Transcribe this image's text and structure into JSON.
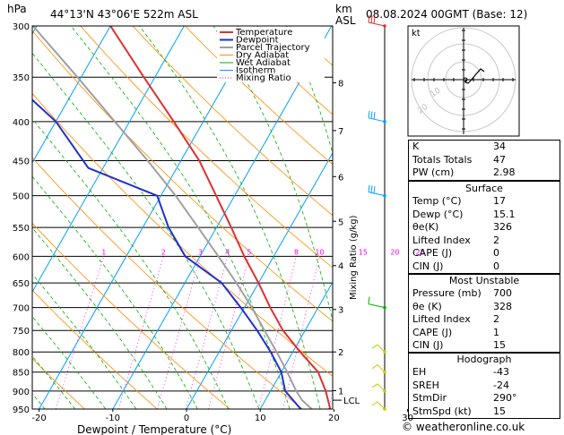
{
  "header": {
    "hpa_unit": "hPa",
    "location": "44°13'N  43°06'E  522m  ASL",
    "km_unit": "km",
    "asl_unit": "ASL",
    "datetime": "08.08.2024  00GMT  (Base: 12)"
  },
  "legend": [
    "Temperature",
    "Dewpoint",
    "Parcel Trajectory",
    "Dry Adiabat",
    "Wet Adiabat",
    "Isotherm",
    "Mixing Ratio"
  ],
  "colors": {
    "temperature": "#e03030",
    "dewpoint": "#2030d0",
    "parcel": "#a0a0a0",
    "dry_adiabat": "#ff8c00",
    "wet_adiabat": "#00b000",
    "isotherm": "#00a0ff",
    "mixing_ratio": "#ff00ff"
  },
  "chart_data": {
    "type": "skew-t",
    "xlabel": "Dewpoint / Temperature (°C)",
    "ylabel": "Mixing Ratio (g/kg)",
    "x_ticks": [
      "-40",
      "-30",
      "-20",
      "-10",
      "0",
      "10",
      "20",
      "30"
    ],
    "pressure_levels": [
      "300",
      "350",
      "400",
      "450",
      "500",
      "550",
      "600",
      "650",
      "700",
      "750",
      "800",
      "850",
      "900",
      "950"
    ],
    "km_ticks": [
      "8",
      "7",
      "6",
      "5",
      "4",
      "3",
      "2",
      "1"
    ],
    "km_pressures": [
      356,
      411,
      472,
      540,
      617,
      704,
      800,
      899
    ],
    "lcl_label": "LCL",
    "lcl_pressure": 925,
    "mixing_ratio_labels": [
      "1",
      "2",
      "3",
      "4",
      "5",
      "8",
      "10",
      "15",
      "20",
      "25"
    ],
    "mixing_ratio_values": [
      1,
      2,
      3,
      4,
      5,
      8,
      10,
      15,
      20,
      25
    ],
    "temperature": [
      {
        "p": 950,
        "t": 19.5
      },
      {
        "p": 900,
        "t": 17.5
      },
      {
        "p": 850,
        "t": 15.0
      },
      {
        "p": 800,
        "t": 11.0
      },
      {
        "p": 750,
        "t": 7.0
      },
      {
        "p": 700,
        "t": 3.5
      },
      {
        "p": 650,
        "t": 0.0
      },
      {
        "p": 600,
        "t": -4.0
      },
      {
        "p": 550,
        "t": -8.0
      },
      {
        "p": 500,
        "t": -12.5
      },
      {
        "p": 450,
        "t": -17.5
      },
      {
        "p": 400,
        "t": -24.0
      },
      {
        "p": 350,
        "t": -31.5
      },
      {
        "p": 300,
        "t": -40.0
      }
    ],
    "dewpoint": [
      {
        "p": 950,
        "t": 15.5
      },
      {
        "p": 900,
        "t": 12.0
      },
      {
        "p": 850,
        "t": 10.0
      },
      {
        "p": 800,
        "t": 7.0
      },
      {
        "p": 750,
        "t": 3.5
      },
      {
        "p": 700,
        "t": -0.5
      },
      {
        "p": 650,
        "t": -5.0
      },
      {
        "p": 600,
        "t": -12.0
      },
      {
        "p": 550,
        "t": -16.5
      },
      {
        "p": 500,
        "t": -20.5
      },
      {
        "p": 460,
        "t": -32.0
      },
      {
        "p": 400,
        "t": -40.0
      },
      {
        "p": 350,
        "t": -50.0
      },
      {
        "p": 300,
        "t": -58.0
      }
    ],
    "parcel": [
      {
        "p": 950,
        "t": 17.0
      },
      {
        "p": 925,
        "t": 15.0
      },
      {
        "p": 900,
        "t": 13.5
      },
      {
        "p": 850,
        "t": 10.8
      },
      {
        "p": 800,
        "t": 7.8
      },
      {
        "p": 750,
        "t": 4.5
      },
      {
        "p": 700,
        "t": 1.0
      },
      {
        "p": 650,
        "t": -3.0
      },
      {
        "p": 600,
        "t": -7.5
      },
      {
        "p": 550,
        "t": -12.5
      },
      {
        "p": 500,
        "t": -18.0
      },
      {
        "p": 450,
        "t": -24.5
      },
      {
        "p": 400,
        "t": -32.0
      },
      {
        "p": 350,
        "t": -40.5
      },
      {
        "p": 300,
        "t": -50.5
      }
    ],
    "wind_barbs_pressure": [
      300,
      400,
      500,
      700,
      800,
      850,
      900,
      950
    ]
  },
  "hodograph": {
    "unit_label": "kt",
    "ring_labels": [
      "10",
      "20"
    ]
  },
  "indices": [
    {
      "label": "K",
      "value": "34"
    },
    {
      "label": "Totals Totals",
      "value": "47"
    },
    {
      "label": "PW (cm)",
      "value": "2.98"
    }
  ],
  "surface": {
    "title": "Surface",
    "rows": [
      {
        "label": "Temp (°C)",
        "value": "17"
      },
      {
        "label": "Dewp (°C)",
        "value": "15.1"
      },
      {
        "label": "θe(K)",
        "value": "326"
      },
      {
        "label": "Lifted Index",
        "value": "2"
      },
      {
        "label": "CAPE (J)",
        "value": "0"
      },
      {
        "label": "CIN (J)",
        "value": "0"
      }
    ]
  },
  "most_unstable": {
    "title": "Most Unstable",
    "rows": [
      {
        "label": "Pressure (mb)",
        "value": "700"
      },
      {
        "label": "θe (K)",
        "value": "328"
      },
      {
        "label": "Lifted Index",
        "value": "2"
      },
      {
        "label": "CAPE (J)",
        "value": "1"
      },
      {
        "label": "CIN (J)",
        "value": "15"
      }
    ]
  },
  "hodograph_table": {
    "title": "Hodograph",
    "rows": [
      {
        "label": "EH",
        "value": "-43"
      },
      {
        "label": "SREH",
        "value": "-24"
      },
      {
        "label": "StmDir",
        "value": "290°"
      },
      {
        "label": "StmSpd (kt)",
        "value": "15"
      }
    ]
  },
  "footer": "© weatheronline.co.uk"
}
